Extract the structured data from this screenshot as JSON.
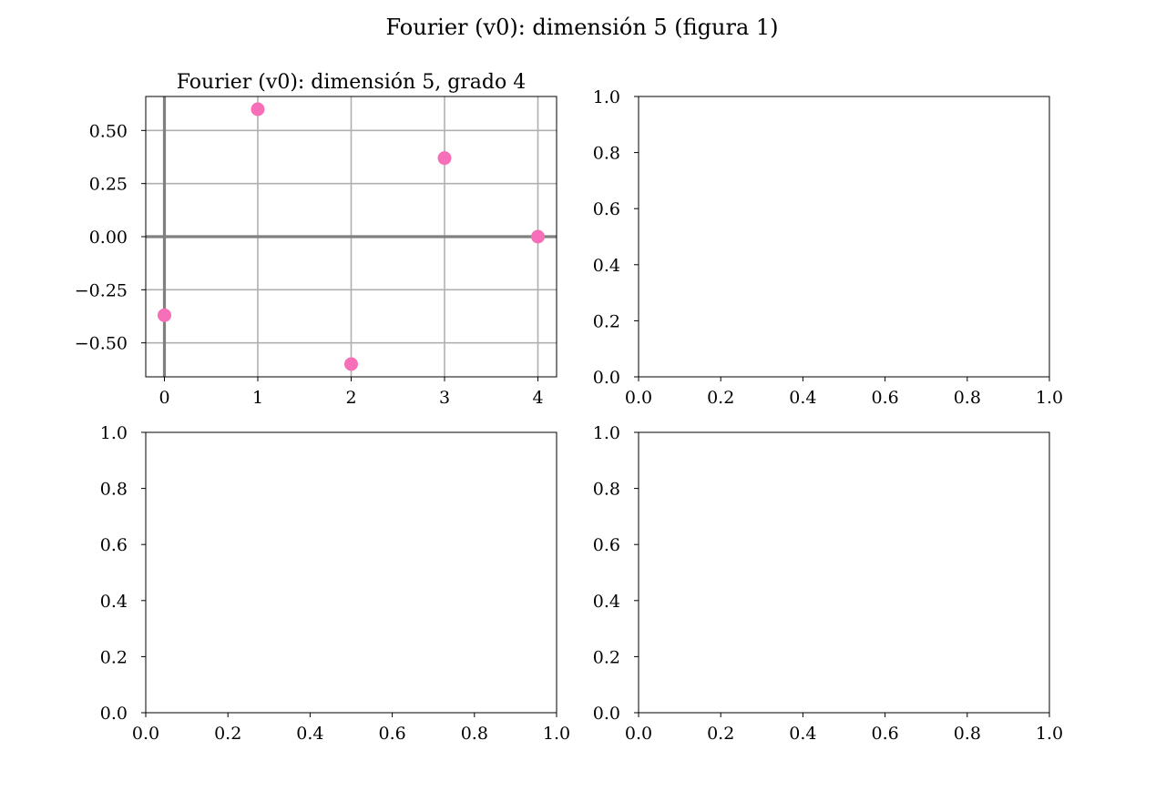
{
  "figure": {
    "suptitle": "Fourier (v0): dimensión 5 (figura 1)"
  },
  "chart_data": [
    {
      "type": "scatter",
      "title": "Fourier (v0): dimensión 5, grado 4",
      "xlabel": "",
      "ylabel": "",
      "grid": true,
      "x": [
        0,
        1,
        2,
        3,
        4
      ],
      "y": [
        -0.37,
        0.6,
        -0.6,
        0.37,
        0.0
      ],
      "xlim": [
        -0.2,
        4.2
      ],
      "ylim": [
        -0.66,
        0.66
      ],
      "xticks": [
        0,
        1,
        2,
        3,
        4
      ],
      "xtick_labels": [
        "0",
        "1",
        "2",
        "3",
        "4"
      ],
      "yticks": [
        0.5,
        0.25,
        0.0,
        -0.25,
        -0.5
      ],
      "ytick_labels": [
        "0.50",
        "0.25",
        "0.00",
        "−0.25",
        "−0.50"
      ],
      "marker_color": "#f76fb8",
      "grid_color": "#b0b0b0",
      "axis_line_color": "#808080"
    },
    {
      "type": "scatter",
      "title": "",
      "empty": true,
      "xlim": [
        0,
        1
      ],
      "ylim": [
        0,
        1
      ],
      "xticks": [
        0,
        0.2,
        0.4,
        0.6,
        0.8,
        1.0
      ],
      "xtick_labels": [
        "0.0",
        "0.2",
        "0.4",
        "0.6",
        "0.8",
        "1.0"
      ],
      "yticks": [
        0,
        0.2,
        0.4,
        0.6,
        0.8,
        1.0
      ],
      "ytick_labels": [
        "0.0",
        "0.2",
        "0.4",
        "0.6",
        "0.8",
        "1.0"
      ]
    },
    {
      "type": "scatter",
      "title": "",
      "empty": true,
      "xlim": [
        0,
        1
      ],
      "ylim": [
        0,
        1
      ],
      "xticks": [
        0,
        0.2,
        0.4,
        0.6,
        0.8,
        1.0
      ],
      "xtick_labels": [
        "0.0",
        "0.2",
        "0.4",
        "0.6",
        "0.8",
        "1.0"
      ],
      "yticks": [
        0,
        0.2,
        0.4,
        0.6,
        0.8,
        1.0
      ],
      "ytick_labels": [
        "0.0",
        "0.2",
        "0.4",
        "0.6",
        "0.8",
        "1.0"
      ]
    },
    {
      "type": "scatter",
      "title": "",
      "empty": true,
      "xlim": [
        0,
        1
      ],
      "ylim": [
        0,
        1
      ],
      "xticks": [
        0,
        0.2,
        0.4,
        0.6,
        0.8,
        1.0
      ],
      "xtick_labels": [
        "0.0",
        "0.2",
        "0.4",
        "0.6",
        "0.8",
        "1.0"
      ],
      "yticks": [
        0,
        0.2,
        0.4,
        0.6,
        0.8,
        1.0
      ],
      "ytick_labels": [
        "0.0",
        "0.2",
        "0.4",
        "0.6",
        "0.8",
        "1.0"
      ]
    }
  ]
}
